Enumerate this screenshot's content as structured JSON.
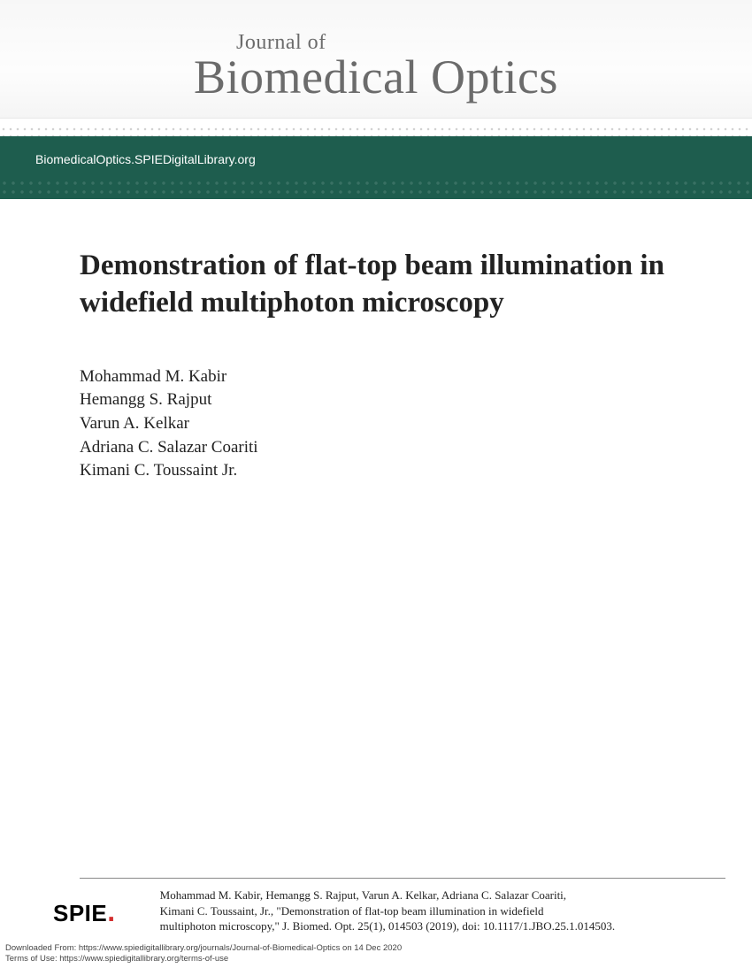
{
  "header": {
    "journal_small": "Journal of",
    "journal_large": "Biomedical Optics"
  },
  "green_bar": {
    "url_text": "BiomedicalOptics.SPIEDigitalLibrary.org"
  },
  "article": {
    "title": "Demonstration of flat-top beam illumination in widefield multiphoton microscopy",
    "authors": [
      "Mohammad M. Kabir",
      "Hemangg S. Rajput",
      "Varun A. Kelkar",
      "Adriana C. Salazar Coariti",
      "Kimani C. Toussaint Jr."
    ]
  },
  "footer": {
    "spie_text": "SPIE",
    "citation_line1": "Mohammad M. Kabir, Hemangg S. Rajput, Varun A. Kelkar, Adriana C. Salazar Coariti,",
    "citation_line2": "Kimani C. Toussaint, Jr., \"Demonstration of flat-top beam illumination in widefield",
    "citation_line3": "multiphoton microscopy,\" J. Biomed. Opt. 25(1), 014503 (2019), doi: 10.1117/1.JBO.25.1.014503."
  },
  "download": {
    "line1": "Downloaded From: https://www.spiedigitallibrary.org/journals/Journal-of-Biomedical-Optics on 14 Dec 2020",
    "line2": "Terms of Use: https://www.spiedigitallibrary.org/terms-of-use"
  },
  "colors": {
    "green_bar": "#1e5d4e",
    "text_gray": "#6b6b6b",
    "spie_red": "#d32f2f"
  }
}
